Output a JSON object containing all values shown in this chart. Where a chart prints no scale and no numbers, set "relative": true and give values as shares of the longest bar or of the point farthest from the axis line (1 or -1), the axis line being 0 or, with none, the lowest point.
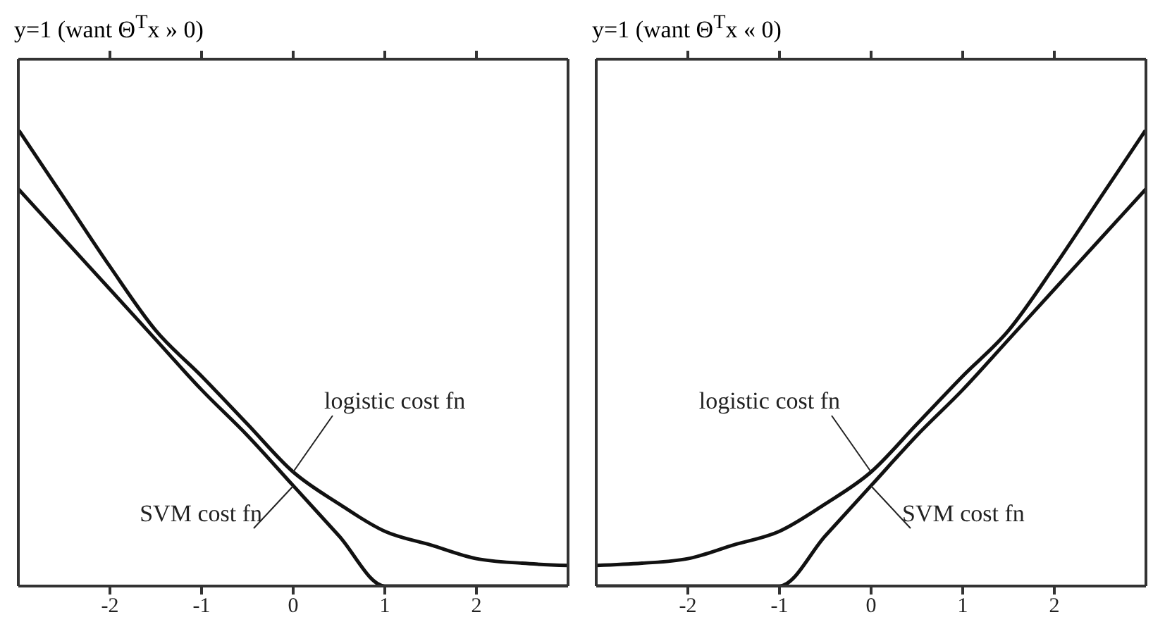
{
  "chart_data": [
    {
      "type": "line",
      "title": "y=1 (want Θ$^{T}$x » 0)",
      "relative": true,
      "xlim": [
        -3,
        3
      ],
      "xticks": [
        -2,
        -1,
        0,
        1,
        2
      ],
      "grid": false,
      "legend": false,
      "marker": "none",
      "line_style": "solid",
      "x": [
        -3,
        -2.5,
        -2,
        -1.5,
        -1,
        -0.5,
        0,
        0.5,
        1,
        1.5,
        2,
        2.5,
        3
      ],
      "series": [
        {
          "name": "logistic cost fn",
          "color": "#111111",
          "values": [
            1,
            0.85,
            0.7,
            0.56,
            0.46,
            0.355,
            0.25,
            0.18,
            0.12,
            0.09,
            0.06,
            0.05,
            0.045
          ]
        },
        {
          "name": "SVM cost fn",
          "color": "#111111",
          "values": [
            0.87,
            0.76,
            0.65,
            0.54,
            0.43,
            0.33,
            0.22,
            0.11,
            0,
            0,
            0,
            0,
            0
          ]
        }
      ]
    },
    {
      "type": "line",
      "title": "y=1 (want Θ$^{T}$x « 0)",
      "relative": true,
      "xlim": [
        -3,
        3
      ],
      "xticks": [
        -2,
        -1,
        0,
        1,
        2
      ],
      "grid": false,
      "legend": false,
      "marker": "none",
      "line_style": "solid",
      "x": [
        -3,
        -2.5,
        -2,
        -1.5,
        -1,
        -0.5,
        0,
        0.5,
        1,
        1.5,
        2,
        2.5,
        3
      ],
      "series": [
        {
          "name": "logistic cost fn",
          "color": "#111111",
          "values": [
            0.045,
            0.05,
            0.06,
            0.09,
            0.12,
            0.18,
            0.25,
            0.355,
            0.46,
            0.56,
            0.7,
            0.85,
            1
          ]
        },
        {
          "name": "SVM cost fn",
          "color": "#111111",
          "values": [
            0,
            0,
            0,
            0,
            0,
            0.11,
            0.22,
            0.33,
            0.43,
            0.54,
            0.65,
            0.76,
            0.87
          ]
        }
      ]
    }
  ]
}
